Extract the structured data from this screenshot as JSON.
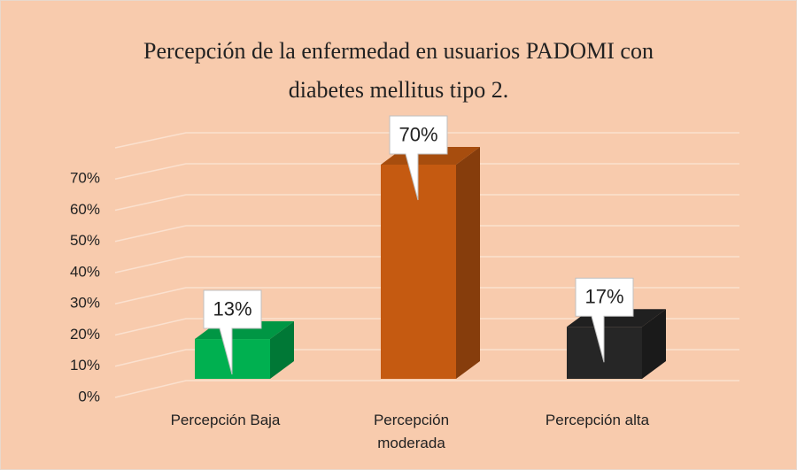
{
  "chart_data": {
    "type": "bar3d",
    "title": "Percepción de la enfermedad en usuarios PADOMI con diabetes mellitus tipo 2.",
    "categories": [
      "Percepción Baja",
      "Percepción moderada",
      "Percepción alta"
    ],
    "values": [
      13,
      70,
      17
    ],
    "value_labels": [
      "13%",
      "70%",
      "17%"
    ],
    "colors": [
      "#00b050",
      "#c55a11",
      "#262626"
    ],
    "ylim": [
      0,
      80
    ],
    "yticks": [
      {
        "value": 0,
        "label": "0%"
      },
      {
        "value": 10,
        "label": "10%"
      },
      {
        "value": 20,
        "label": "20%"
      },
      {
        "value": 30,
        "label": "30%"
      },
      {
        "value": 40,
        "label": "40%"
      },
      {
        "value": 50,
        "label": "50%"
      },
      {
        "value": 60,
        "label": "60%"
      },
      {
        "value": 70,
        "label": "70%"
      }
    ],
    "grid": true
  }
}
